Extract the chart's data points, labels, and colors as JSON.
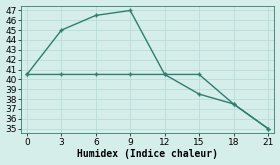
{
  "line1_x": [
    0,
    3,
    6,
    9,
    12,
    15,
    18,
    21
  ],
  "line1_y": [
    40.5,
    45,
    46.5,
    47,
    40.5,
    40.5,
    37.5,
    35
  ],
  "line2_x": [
    0,
    3,
    6,
    9,
    12,
    15,
    18,
    21
  ],
  "line2_y": [
    40.5,
    40.5,
    40.5,
    40.5,
    40.5,
    38.5,
    37.5,
    35
  ],
  "line_color": "#2e7d6e",
  "bg_color": "#d6eeea",
  "grid_color": "#b8ddd7",
  "xlabel": "Humidex (Indice chaleur)",
  "xlim": [
    -0.5,
    21.5
  ],
  "ylim": [
    34.5,
    47.5
  ],
  "xticks": [
    0,
    3,
    6,
    9,
    12,
    15,
    18,
    21
  ],
  "yticks": [
    35,
    36,
    37,
    38,
    39,
    40,
    41,
    42,
    43,
    44,
    45,
    46,
    47
  ],
  "xlabel_fontsize": 7,
  "tick_fontsize": 6.5,
  "markersize": 3,
  "linewidth": 1.0
}
